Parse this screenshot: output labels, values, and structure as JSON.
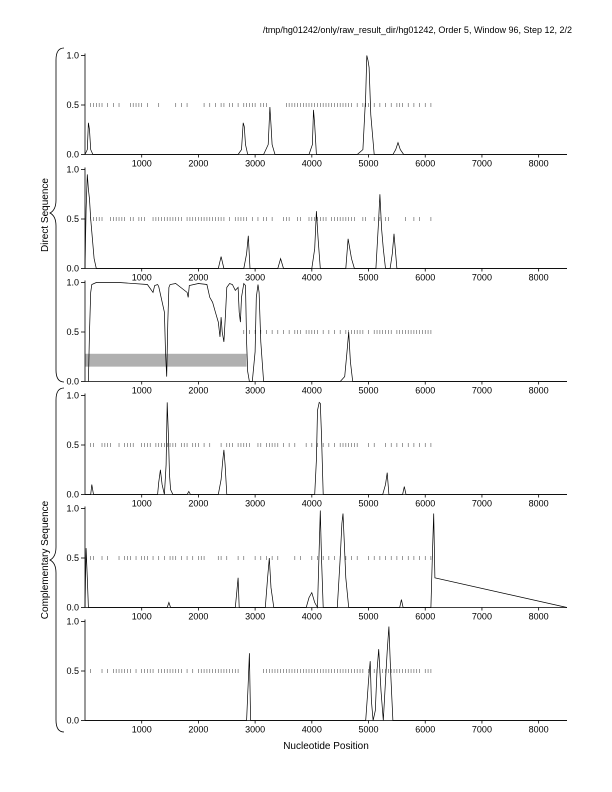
{
  "header": {
    "caption": "/tmp/hg01242/only/raw_result_dir/hg01242, Order 5, Window 96, Step 12, 2/2"
  },
  "labels": {
    "xlabel": "Nucleotide Position",
    "group_top": "Direct Sequence",
    "group_bottom": "Complementary Sequence"
  },
  "colors": {
    "line": "#000000",
    "axis": "#000000",
    "ticks": "#555555",
    "shaded_region": "#b0b0b0"
  },
  "chart_data": [
    {
      "type": "line",
      "panel": 1,
      "group": "Direct Sequence",
      "xlim": [
        0,
        8500
      ],
      "ylim": [
        0,
        1
      ],
      "xticks": [
        1000,
        2000,
        3000,
        4000,
        5000,
        6000,
        7000,
        8000
      ],
      "yticks": [
        0.0,
        0.5,
        1.0
      ],
      "ytick_labels": [
        "0.0",
        "0.5",
        "1.0"
      ],
      "series": [
        {
          "x": [
            0,
            40,
            60,
            80,
            100,
            140,
            2700,
            2760,
            2790,
            2810,
            2830,
            2870,
            3150,
            3230,
            3260,
            3280,
            3300,
            3350,
            3950,
            4010,
            4030,
            4050,
            4080,
            4800,
            4900,
            4950,
            4970,
            4990,
            5010,
            5040,
            5100,
            5430,
            5480,
            5520,
            5560,
            5620,
            8500
          ],
          "y": [
            0,
            0.05,
            0.32,
            0.25,
            0.05,
            0,
            0,
            0.05,
            0.32,
            0.28,
            0.1,
            0,
            0,
            0.1,
            0.48,
            0.3,
            0.1,
            0,
            0,
            0.1,
            0.45,
            0.3,
            0,
            0,
            0.05,
            0.6,
            1.0,
            0.95,
            0.88,
            0.4,
            0,
            0,
            0.05,
            0.12,
            0.05,
            0,
            0
          ]
        }
      ],
      "tick_marks": {
        "y": 0.5,
        "x": [
          100,
          150,
          200,
          250,
          300,
          400,
          500,
          600,
          800,
          850,
          900,
          950,
          1000,
          1100,
          1300,
          1600,
          1700,
          1800,
          2100,
          2200,
          2300,
          2400,
          2450,
          2550,
          2600,
          2700,
          2800,
          2850,
          2900,
          2950,
          3000,
          3100,
          3150,
          3200,
          3550,
          3600,
          3650,
          3700,
          3750,
          3800,
          3850,
          3900,
          3950,
          4000,
          4050,
          4100,
          4150,
          4200,
          4250,
          4300,
          4350,
          4400,
          4450,
          4500,
          4550,
          4600,
          4650,
          4700,
          4800,
          4900,
          4950,
          5000,
          5100,
          5200,
          5300,
          5400,
          5500,
          5550,
          5600,
          5700,
          5800,
          5900,
          6000,
          6100
        ]
      },
      "shaded": null
    },
    {
      "type": "line",
      "panel": 2,
      "group": "Direct Sequence",
      "xlim": [
        0,
        8500
      ],
      "ylim": [
        0,
        1
      ],
      "xticks": [
        1000,
        2000,
        3000,
        4000,
        5000,
        6000,
        7000,
        8000
      ],
      "yticks": [
        0.0,
        0.5,
        1.0
      ],
      "ytick_labels": [
        "0.0",
        "0.5",
        "1.0"
      ],
      "series": [
        {
          "x": [
            0,
            20,
            40,
            60,
            80,
            100,
            130,
            160,
            200,
            2350,
            2400,
            2450,
            2800,
            2850,
            2880,
            2910,
            3400,
            3450,
            3500,
            4000,
            4050,
            4080,
            4110,
            4150,
            4600,
            4640,
            4670,
            4700,
            4750,
            5130,
            5180,
            5200,
            5230,
            5260,
            5300,
            5380,
            5420,
            5450,
            5500,
            8500
          ],
          "y": [
            0,
            0.6,
            0.95,
            0.8,
            0.7,
            0.5,
            0.3,
            0.1,
            0,
            0,
            0.12,
            0,
            0,
            0.15,
            0.33,
            0,
            0,
            0.1,
            0,
            0,
            0.2,
            0.58,
            0.3,
            0,
            0,
            0.3,
            0.2,
            0.1,
            0,
            0,
            0.5,
            0.75,
            0.4,
            0.2,
            0,
            0,
            0.15,
            0.35,
            0,
            0
          ]
        }
      ],
      "tick_marks": {
        "y": 0.5,
        "x": [
          100,
          150,
          200,
          250,
          300,
          450,
          500,
          550,
          600,
          650,
          700,
          800,
          850,
          950,
          1000,
          1050,
          1200,
          1250,
          1300,
          1350,
          1400,
          1450,
          1500,
          1550,
          1600,
          1650,
          1700,
          1800,
          1850,
          1900,
          1950,
          2000,
          2050,
          2100,
          2150,
          2200,
          2250,
          2300,
          2350,
          2400,
          2450,
          2550,
          2650,
          2700,
          2750,
          2800,
          2850,
          2950,
          3050,
          3150,
          3200,
          3300,
          3500,
          3550,
          3600,
          3750,
          3800,
          3950,
          4000,
          4050,
          4100,
          4150,
          4200,
          4250,
          4350,
          4400,
          4450,
          4500,
          4550,
          4600,
          4650,
          4700,
          4750,
          4900,
          4950,
          5100,
          5200,
          5300,
          5350,
          5650,
          5800,
          5900,
          6100
        ]
      },
      "shaded": null
    },
    {
      "type": "line",
      "panel": 3,
      "group": "Direct Sequence",
      "xlim": [
        0,
        8500
      ],
      "ylim": [
        0,
        1
      ],
      "xticks": [
        1000,
        2000,
        3000,
        4000,
        5000,
        6000,
        7000,
        8000
      ],
      "yticks": [
        0.0,
        0.5,
        1.0
      ],
      "ytick_labels": [
        "0.0",
        "0.5",
        "1.0"
      ],
      "series": [
        {
          "x": [
            60,
            80,
            100,
            120,
            200,
            600,
            1100,
            1200,
            1230,
            1280,
            1300,
            1400,
            1420,
            1440,
            1460,
            1480,
            1500,
            1600,
            1800,
            1820,
            1840,
            2000,
            2150,
            2200,
            2250,
            2300,
            2350,
            2380,
            2400,
            2420,
            2450,
            2480,
            2500,
            2550,
            2600,
            2650,
            2700,
            2720,
            2740,
            2760,
            2800,
            2830,
            2850,
            2870,
            2900,
            2950,
            3000,
            3020,
            3050,
            3070,
            3100,
            3150,
            3400,
            4500,
            4580,
            4620,
            4650,
            4680,
            4720,
            8500
          ],
          "y": [
            0,
            0.5,
            0.9,
            0.98,
            1.0,
            1.0,
            0.98,
            0.9,
            0.97,
            0.98,
            0.96,
            0.7,
            0.3,
            0.05,
            0.6,
            0.95,
            0.98,
            0.99,
            0.9,
            0.85,
            0.97,
            0.99,
            0.98,
            0.85,
            0.8,
            0.7,
            0.6,
            0.45,
            0.65,
            0.5,
            0.4,
            0.7,
            0.95,
            0.99,
            0.98,
            0.92,
            0.95,
            0.7,
            0.6,
            0.85,
            0.99,
            0.97,
            0.4,
            0.1,
            0,
            0,
            0.3,
            0.85,
            0.98,
            0.9,
            0.4,
            0,
            0,
            0,
            0.05,
            0.3,
            0.5,
            0.2,
            0,
            0
          ]
        }
      ],
      "tick_marks": {
        "y": 0.5,
        "x": [
          2800,
          2900,
          3000,
          3100,
          3200,
          3300,
          3400,
          3500,
          3600,
          3700,
          3750,
          3800,
          3900,
          3950,
          4000,
          4050,
          4100,
          4200,
          4300,
          4400,
          4500,
          4600,
          4650,
          4700,
          4750,
          4800,
          4850,
          4900,
          5000,
          5100,
          5150,
          5200,
          5250,
          5300,
          5350,
          5400,
          5500,
          5550,
          5600,
          5650,
          5700,
          5750,
          5800,
          5850,
          5900,
          5950,
          6000,
          6050,
          6100
        ]
      },
      "shaded": {
        "x": [
          0,
          2850
        ],
        "y": [
          0.15,
          0.28
        ]
      }
    },
    {
      "type": "line",
      "panel": 4,
      "group": "Complementary Sequence",
      "xlim": [
        0,
        8500
      ],
      "ylim": [
        0,
        1
      ],
      "xticks": [
        1000,
        2000,
        3000,
        4000,
        5000,
        6000,
        7000,
        8000
      ],
      "yticks": [
        0.0,
        0.5,
        1.0
      ],
      "ytick_labels": [
        "0.0",
        "0.5",
        "1.0"
      ],
      "series": [
        {
          "x": [
            0,
            100,
            120,
            150,
            1280,
            1300,
            1330,
            1360,
            1400,
            1430,
            1450,
            1470,
            1490,
            1510,
            1550,
            1800,
            1830,
            1860,
            2350,
            2400,
            2430,
            2450,
            2470,
            2500,
            4050,
            4080,
            4100,
            4130,
            4150,
            4170,
            4200,
            5250,
            5300,
            5330,
            5360,
            5600,
            5630,
            5660,
            8500
          ],
          "y": [
            0,
            0,
            0.1,
            0,
            0,
            0.12,
            0.25,
            0.1,
            0,
            0.3,
            0.93,
            0.6,
            0.2,
            0.05,
            0,
            0,
            0.03,
            0,
            0,
            0.15,
            0.35,
            0.45,
            0.3,
            0,
            0,
            0.35,
            0.85,
            0.93,
            0.92,
            0.6,
            0,
            0,
            0.1,
            0.22,
            0,
            0,
            0.08,
            0,
            0
          ]
        }
      ],
      "tick_marks": {
        "y": 0.5,
        "x": [
          100,
          150,
          300,
          350,
          400,
          450,
          600,
          700,
          750,
          800,
          850,
          1000,
          1050,
          1100,
          1150,
          1250,
          1300,
          1350,
          1400,
          1450,
          1500,
          1550,
          1600,
          1700,
          1750,
          1800,
          1900,
          1950,
          2000,
          2100,
          2200,
          2400,
          2500,
          2550,
          2600,
          2700,
          2750,
          2800,
          2850,
          2900,
          3050,
          3100,
          3200,
          3250,
          3300,
          3350,
          3400,
          3500,
          3600,
          3700,
          3900,
          4000,
          4100,
          4200,
          4300,
          4400,
          4500,
          4550,
          4600,
          4650,
          4700,
          4750,
          4800,
          5000,
          5100,
          5300,
          5400,
          5500,
          5600,
          5700,
          5800,
          5900,
          6000,
          6100
        ]
      },
      "shaded": null
    },
    {
      "type": "line",
      "panel": 5,
      "group": "Complementary Sequence",
      "xlim": [
        0,
        8500
      ],
      "ylim": [
        0,
        1
      ],
      "xticks": [
        1000,
        2000,
        3000,
        4000,
        5000,
        6000,
        7000,
        8000
      ],
      "yticks": [
        0.0,
        0.5,
        1.0
      ],
      "ytick_labels": [
        "0.0",
        "0.5",
        "1.0"
      ],
      "series": [
        {
          "x": [
            0,
            20,
            40,
            60,
            1450,
            1480,
            1510,
            2650,
            2680,
            2700,
            2720,
            3180,
            3220,
            3250,
            3280,
            3330,
            3900,
            3950,
            4000,
            4050,
            4100,
            4130,
            4150,
            4170,
            4200,
            4450,
            4500,
            4530,
            4550,
            4570,
            4600,
            4650,
            5550,
            5580,
            5610,
            6100,
            6130,
            6150,
            6170,
            8500
          ],
          "y": [
            0,
            0.6,
            0.3,
            0,
            0,
            0.05,
            0,
            0,
            0.18,
            0.3,
            0,
            0,
            0.3,
            0.5,
            0.2,
            0,
            0,
            0.1,
            0.15,
            0.05,
            0,
            0.6,
            0.98,
            0.5,
            0,
            0,
            0.5,
            0.85,
            0.95,
            0.7,
            0.3,
            0,
            0,
            0.08,
            0,
            0,
            0.6,
            0.95,
            0.3,
            0
          ]
        }
      ],
      "tick_marks": {
        "y": 0.5,
        "x": [
          100,
          150,
          300,
          400,
          600,
          700,
          750,
          800,
          900,
          1000,
          1050,
          1100,
          1200,
          1300,
          1400,
          1500,
          1550,
          1600,
          1700,
          1800,
          1900,
          2000,
          2050,
          2100,
          2350,
          2400,
          2500,
          2700,
          2800,
          3000,
          3100,
          3200,
          3300,
          3400,
          3700,
          3800,
          4000,
          4100,
          4200,
          4300,
          4400,
          4500,
          4600,
          4700,
          4800,
          5000,
          5100,
          5200,
          5300,
          5400,
          5500,
          5600,
          5700,
          5800,
          5900,
          6000,
          6100
        ]
      },
      "shaded": null
    },
    {
      "type": "line",
      "panel": 6,
      "group": "Complementary Sequence",
      "xlim": [
        0,
        8500
      ],
      "ylim": [
        0,
        1
      ],
      "xticks": [
        1000,
        2000,
        3000,
        4000,
        5000,
        6000,
        7000,
        8000
      ],
      "yticks": [
        0.0,
        0.5,
        1.0
      ],
      "ytick_labels": [
        "0.0",
        "0.5",
        "1.0"
      ],
      "series": [
        {
          "x": [
            0,
            2850,
            2880,
            2900,
            2920,
            4950,
            5000,
            5030,
            5050,
            5080,
            5120,
            5150,
            5180,
            5220,
            5260,
            5300,
            5330,
            5360,
            5390,
            5430,
            8500
          ],
          "y": [
            0,
            0,
            0.4,
            0.68,
            0,
            0,
            0.4,
            0.6,
            0.2,
            0,
            0.1,
            0.5,
            0.72,
            0.3,
            0,
            0.4,
            0.7,
            0.95,
            0.5,
            0,
            0
          ]
        }
      ],
      "tick_marks": {
        "y": 0.5,
        "x": [
          100,
          300,
          400,
          500,
          550,
          600,
          650,
          700,
          750,
          800,
          900,
          1000,
          1050,
          1100,
          1150,
          1200,
          1300,
          1350,
          1400,
          1450,
          1500,
          1550,
          1600,
          1650,
          1700,
          1800,
          1900,
          2000,
          2050,
          2100,
          2150,
          2200,
          2250,
          2300,
          2350,
          2400,
          2450,
          2500,
          2550,
          2600,
          2650,
          2700,
          3150,
          3200,
          3250,
          3300,
          3350,
          3400,
          3450,
          3500,
          3550,
          3600,
          3650,
          3700,
          3750,
          3800,
          3850,
          3900,
          3950,
          4000,
          4050,
          4100,
          4150,
          4200,
          4250,
          4300,
          4350,
          4400,
          4450,
          4500,
          4550,
          4600,
          4650,
          4700,
          4750,
          4800,
          4850,
          4900,
          5000,
          5100,
          5150,
          5200,
          5250,
          5300,
          5350,
          5400,
          5450,
          5500,
          5550,
          5600,
          5650,
          5700,
          5750,
          5800,
          5850,
          5900,
          6000,
          6050,
          6100
        ]
      },
      "shaded": null
    }
  ]
}
